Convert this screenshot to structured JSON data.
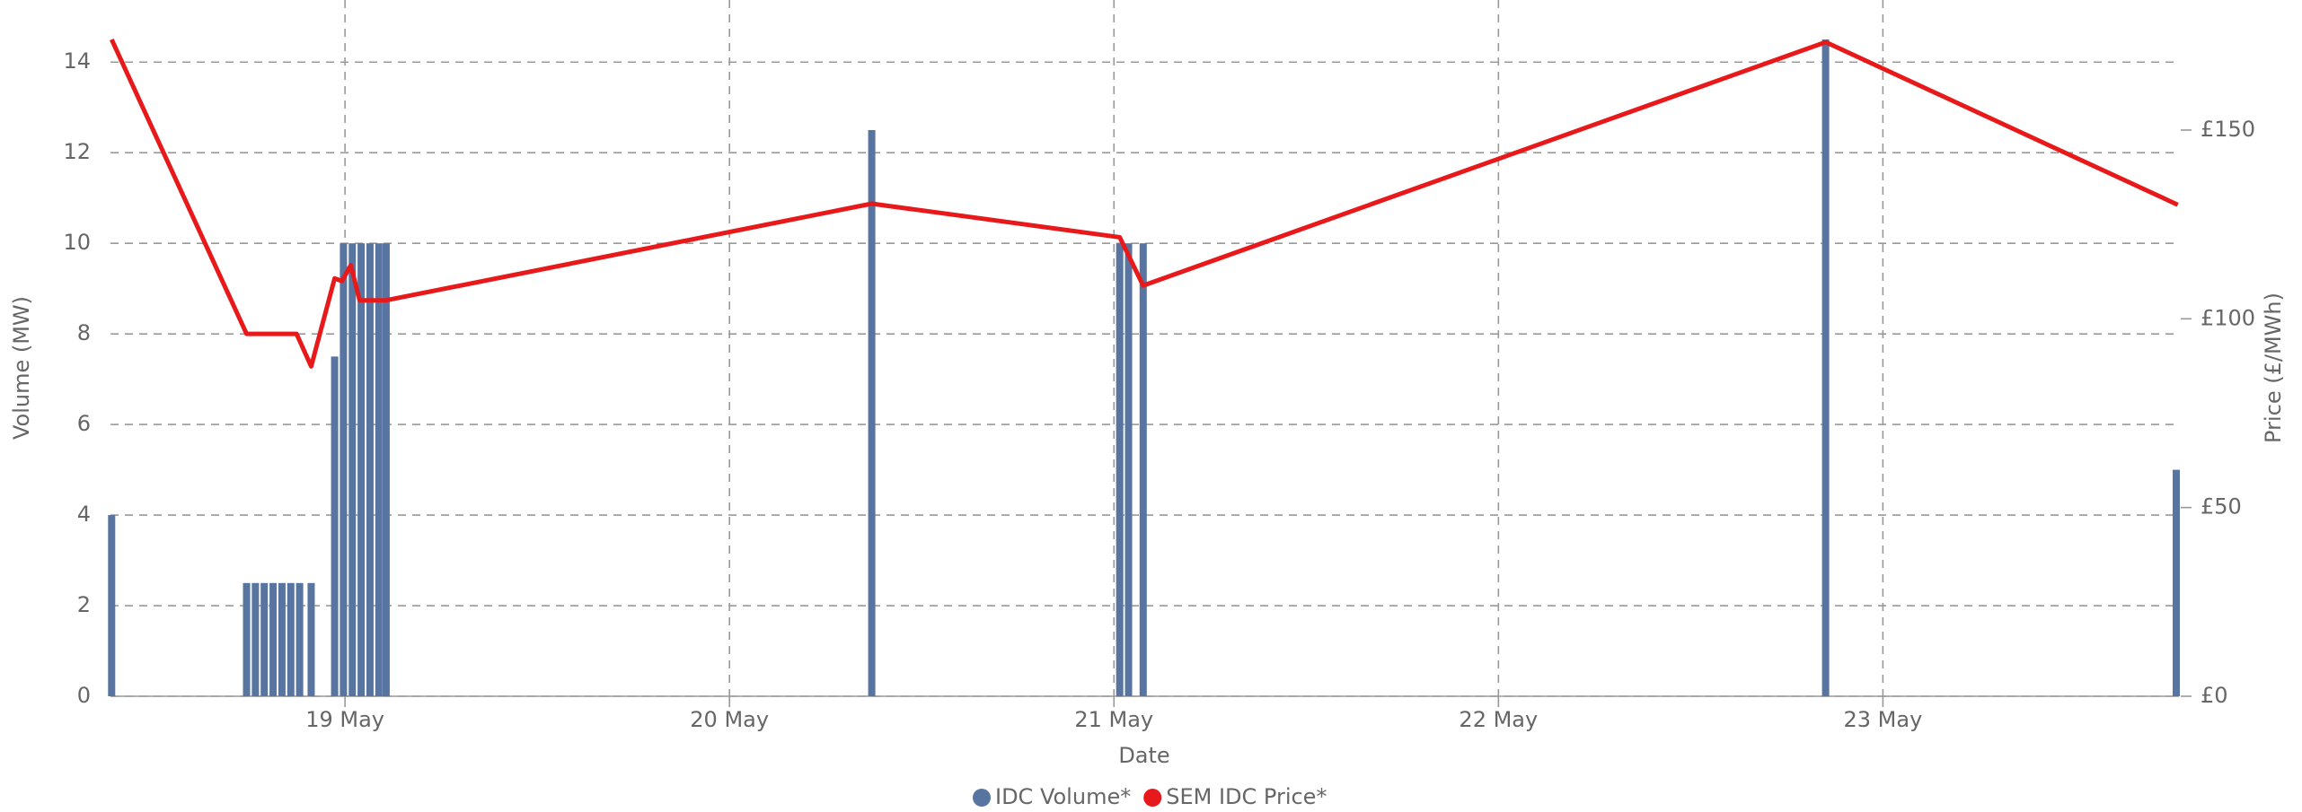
{
  "chart_data": {
    "type": "combo",
    "x_label": "Date",
    "y_label": "Volume (MW)",
    "y2_label": "Price (£/MWh)",
    "xlim": [
      18.39,
      23.77
    ],
    "xticks": [
      {
        "value": 19,
        "label": "19 May"
      },
      {
        "value": 20,
        "label": "20 May"
      },
      {
        "value": 21,
        "label": "21 May"
      },
      {
        "value": 22,
        "label": "22 May"
      },
      {
        "value": 23,
        "label": "23 May"
      }
    ],
    "ylim": [
      0,
      14.5
    ],
    "yticks": [
      0,
      2,
      4,
      6,
      8,
      10,
      12,
      14
    ],
    "y2lim": [
      0,
      174
    ],
    "y2ticks": [
      {
        "value": 0,
        "label": "£0"
      },
      {
        "value": 50,
        "label": "£50"
      },
      {
        "value": 100,
        "label": "£100"
      },
      {
        "value": 150,
        "label": "£150"
      }
    ],
    "grid": true,
    "legend": "bottom",
    "series": [
      {
        "name": "IDC Volume*",
        "type": "bar",
        "color": "#5874a0",
        "x": [
          18.393,
          18.744,
          18.767,
          18.79,
          18.813,
          18.836,
          18.859,
          18.882,
          18.912,
          18.973,
          18.996,
          19.019,
          19.042,
          19.065,
          19.088,
          19.107,
          20.37,
          21.015,
          21.038,
          21.076,
          22.851,
          23.763
        ],
        "values": [
          4,
          2.5,
          2.5,
          2.5,
          2.5,
          2.5,
          2.5,
          2.5,
          2.5,
          7.5,
          10,
          10,
          10,
          10,
          10,
          10,
          12.5,
          10,
          10,
          10,
          14.5,
          5
        ]
      },
      {
        "name": "SEM IDC Price*",
        "type": "line",
        "axis": "y2",
        "color": "#e8191a",
        "x": [
          18.393,
          18.744,
          18.874,
          18.912,
          18.973,
          18.992,
          19.015,
          19.038,
          19.107,
          20.37,
          21.015,
          21.076,
          22.851,
          23.767
        ],
        "values": [
          174,
          96,
          96,
          87.4,
          110.7,
          110,
          114.2,
          104.9,
          104.9,
          130.5,
          121.6,
          108.8,
          173.3,
          130.2
        ]
      }
    ]
  }
}
